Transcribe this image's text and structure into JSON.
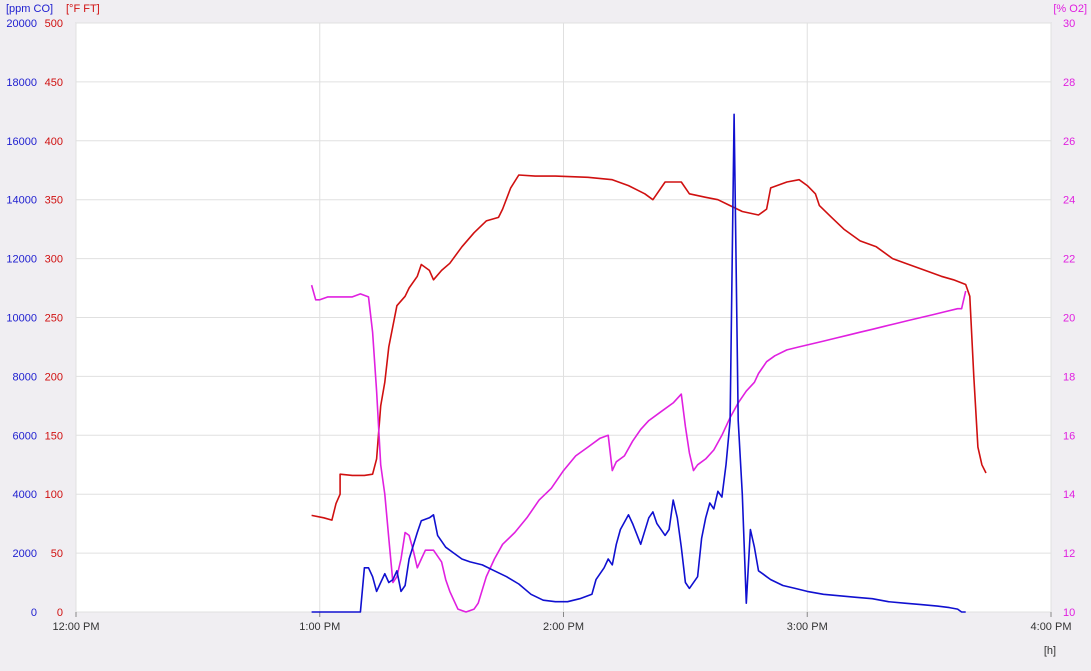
{
  "chart_data": {
    "type": "line",
    "x_axis": {
      "unit_label": "[h]",
      "range": [
        "12:00 PM",
        "4:00 PM"
      ],
      "ticks": [
        "12:00 PM",
        "1:00 PM",
        "2:00 PM",
        "3:00 PM",
        "4:00 PM"
      ]
    },
    "axes": {
      "co": {
        "label": "[ppm CO]",
        "min": 0,
        "max": 20000,
        "ticks": [
          "0",
          "2000",
          "4000",
          "6000",
          "8000",
          "10000",
          "12000",
          "14000",
          "16000",
          "18000",
          "20000"
        ],
        "color": "#2020d0"
      },
      "ft": {
        "label": "[°F FT]",
        "min": 0,
        "max": 500,
        "ticks": [
          "0",
          "50",
          "100",
          "150",
          "200",
          "250",
          "300",
          "350",
          "400",
          "450",
          "500"
        ],
        "color": "#d01010"
      },
      "o2": {
        "label": "[% O2]",
        "min": 10,
        "max": 30,
        "ticks": [
          "10",
          "12",
          "14",
          "16",
          "18",
          "20",
          "22",
          "24",
          "26",
          "28",
          "30"
        ],
        "color": "#e020e0"
      }
    },
    "grid": true,
    "series": [
      {
        "name": "[°F FT]",
        "axis": "ft",
        "color": "#d01010",
        "points": [
          [
            "12:58",
            82
          ],
          [
            "13:01",
            80
          ],
          [
            "13:03",
            78
          ],
          [
            "13:04",
            92
          ],
          [
            "13:05",
            100
          ],
          [
            "13:05",
            117
          ],
          [
            "13:08",
            116
          ],
          [
            "13:11",
            116
          ],
          [
            "13:13",
            117
          ],
          [
            "13:14",
            130
          ],
          [
            "13:15",
            175
          ],
          [
            "13:16",
            195
          ],
          [
            "13:17",
            225
          ],
          [
            "13:19",
            260
          ],
          [
            "13:21",
            268
          ],
          [
            "13:22",
            275
          ],
          [
            "13:24",
            285
          ],
          [
            "13:25",
            295
          ],
          [
            "13:27",
            290
          ],
          [
            "13:28",
            282
          ],
          [
            "13:30",
            290
          ],
          [
            "13:32",
            296
          ],
          [
            "13:35",
            310
          ],
          [
            "13:38",
            322
          ],
          [
            "13:41",
            332
          ],
          [
            "13:44",
            335
          ],
          [
            "13:45",
            342
          ],
          [
            "13:47",
            360
          ],
          [
            "13:49",
            371
          ],
          [
            "13:53",
            370
          ],
          [
            "13:58",
            370
          ],
          [
            "14:06",
            369
          ],
          [
            "14:12",
            367
          ],
          [
            "14:16",
            362
          ],
          [
            "14:20",
            355
          ],
          [
            "14:22",
            350
          ],
          [
            "14:25",
            365
          ],
          [
            "14:29",
            365
          ],
          [
            "14:31",
            355
          ],
          [
            "14:35",
            352
          ],
          [
            "14:38",
            350
          ],
          [
            "14:41",
            345
          ],
          [
            "14:44",
            340
          ],
          [
            "14:48",
            337
          ],
          [
            "14:50",
            342
          ],
          [
            "14:51",
            360
          ],
          [
            "14:55",
            365
          ],
          [
            "14:58",
            367
          ],
          [
            "15:00",
            362
          ],
          [
            "15:02",
            355
          ],
          [
            "15:03",
            345
          ],
          [
            "15:06",
            335
          ],
          [
            "15:09",
            325
          ],
          [
            "15:13",
            315
          ],
          [
            "15:17",
            310
          ],
          [
            "15:21",
            300
          ],
          [
            "15:25",
            295
          ],
          [
            "15:29",
            290
          ],
          [
            "15:33",
            285
          ],
          [
            "15:36",
            282
          ],
          [
            "15:39",
            278
          ],
          [
            "15:40",
            268
          ],
          [
            "15:41",
            200
          ],
          [
            "15:42",
            140
          ],
          [
            "15:43",
            125
          ],
          [
            "15:44",
            118
          ]
        ]
      },
      {
        "name": "[% O2]",
        "axis": "o2",
        "color": "#e020e0",
        "points": [
          [
            "12:58",
            21.1
          ],
          [
            "12:59",
            20.6
          ],
          [
            "13:00",
            20.6
          ],
          [
            "13:02",
            20.7
          ],
          [
            "13:05",
            20.7
          ],
          [
            "13:08",
            20.7
          ],
          [
            "13:10",
            20.8
          ],
          [
            "13:12",
            20.7
          ],
          [
            "13:13",
            19.5
          ],
          [
            "13:14",
            17.5
          ],
          [
            "13:15",
            15.0
          ],
          [
            "13:16",
            14.0
          ],
          [
            "13:17",
            12.5
          ],
          [
            "13:18",
            11.0
          ],
          [
            "13:19",
            11.2
          ],
          [
            "13:20",
            11.8
          ],
          [
            "13:21",
            12.7
          ],
          [
            "13:22",
            12.6
          ],
          [
            "13:23",
            12.1
          ],
          [
            "13:24",
            11.5
          ],
          [
            "13:25",
            11.8
          ],
          [
            "13:26",
            12.1
          ],
          [
            "13:28",
            12.1
          ],
          [
            "13:30",
            11.7
          ],
          [
            "13:31",
            11.1
          ],
          [
            "13:32",
            10.7
          ],
          [
            "13:33",
            10.4
          ],
          [
            "13:34",
            10.1
          ],
          [
            "13:36",
            10.0
          ],
          [
            "13:38",
            10.1
          ],
          [
            "13:39",
            10.3
          ],
          [
            "13:41",
            11.2
          ],
          [
            "13:43",
            11.8
          ],
          [
            "13:45",
            12.3
          ],
          [
            "13:48",
            12.7
          ],
          [
            "13:51",
            13.2
          ],
          [
            "13:54",
            13.8
          ],
          [
            "13:57",
            14.2
          ],
          [
            "14:00",
            14.8
          ],
          [
            "14:03",
            15.3
          ],
          [
            "14:06",
            15.6
          ],
          [
            "14:09",
            15.9
          ],
          [
            "14:11",
            16.0
          ],
          [
            "14:12",
            14.8
          ],
          [
            "14:13",
            15.1
          ],
          [
            "14:15",
            15.3
          ],
          [
            "14:17",
            15.8
          ],
          [
            "14:19",
            16.2
          ],
          [
            "14:21",
            16.5
          ],
          [
            "14:24",
            16.8
          ],
          [
            "14:27",
            17.1
          ],
          [
            "14:29",
            17.4
          ],
          [
            "14:30",
            16.3
          ],
          [
            "14:31",
            15.4
          ],
          [
            "14:32",
            14.8
          ],
          [
            "14:33",
            15.0
          ],
          [
            "14:35",
            15.2
          ],
          [
            "14:37",
            15.5
          ],
          [
            "14:39",
            16.0
          ],
          [
            "14:41",
            16.6
          ],
          [
            "14:43",
            17.1
          ],
          [
            "14:45",
            17.5
          ],
          [
            "14:47",
            17.8
          ],
          [
            "14:48",
            18.1
          ],
          [
            "14:50",
            18.5
          ],
          [
            "14:52",
            18.7
          ],
          [
            "14:55",
            18.9
          ],
          [
            "14:58",
            19.0
          ],
          [
            "15:01",
            19.1
          ],
          [
            "15:04",
            19.2
          ],
          [
            "15:07",
            19.3
          ],
          [
            "15:10",
            19.4
          ],
          [
            "15:13",
            19.5
          ],
          [
            "15:16",
            19.6
          ],
          [
            "15:19",
            19.7
          ],
          [
            "15:22",
            19.8
          ],
          [
            "15:25",
            19.9
          ],
          [
            "15:28",
            20.0
          ],
          [
            "15:31",
            20.1
          ],
          [
            "15:34",
            20.2
          ],
          [
            "15:37",
            20.3
          ],
          [
            "15:38",
            20.3
          ],
          [
            "15:39",
            20.9
          ]
        ]
      },
      {
        "name": "[ppm CO]",
        "axis": "co",
        "color": "#1010d0",
        "points": [
          [
            "12:58",
            0
          ],
          [
            "13:05",
            0
          ],
          [
            "13:10",
            0
          ],
          [
            "13:11",
            1500
          ],
          [
            "13:12",
            1500
          ],
          [
            "13:13",
            1200
          ],
          [
            "13:14",
            700
          ],
          [
            "13:15",
            1000
          ],
          [
            "13:16",
            1300
          ],
          [
            "13:17",
            1000
          ],
          [
            "13:18",
            1100
          ],
          [
            "13:19",
            1400
          ],
          [
            "13:20",
            700
          ],
          [
            "13:21",
            900
          ],
          [
            "13:22",
            1800
          ],
          [
            "13:24",
            2700
          ],
          [
            "13:25",
            3100
          ],
          [
            "13:27",
            3200
          ],
          [
            "13:28",
            3300
          ],
          [
            "13:29",
            2600
          ],
          [
            "13:31",
            2200
          ],
          [
            "13:33",
            2000
          ],
          [
            "13:35",
            1800
          ],
          [
            "13:37",
            1700
          ],
          [
            "13:40",
            1600
          ],
          [
            "13:43",
            1400
          ],
          [
            "13:46",
            1200
          ],
          [
            "13:49",
            950
          ],
          [
            "13:52",
            600
          ],
          [
            "13:55",
            400
          ],
          [
            "13:58",
            350
          ],
          [
            "14:01",
            350
          ],
          [
            "14:04",
            450
          ],
          [
            "14:07",
            600
          ],
          [
            "14:08",
            1100
          ],
          [
            "14:10",
            1500
          ],
          [
            "14:11",
            1800
          ],
          [
            "14:12",
            1600
          ],
          [
            "14:13",
            2300
          ],
          [
            "14:14",
            2800
          ],
          [
            "14:16",
            3300
          ],
          [
            "14:17",
            3000
          ],
          [
            "14:19",
            2300
          ],
          [
            "14:21",
            3200
          ],
          [
            "14:22",
            3400
          ],
          [
            "14:23",
            3000
          ],
          [
            "14:25",
            2600
          ],
          [
            "14:26",
            2800
          ],
          [
            "14:27",
            3800
          ],
          [
            "14:28",
            3200
          ],
          [
            "14:29",
            2200
          ],
          [
            "14:30",
            1000
          ],
          [
            "14:31",
            800
          ],
          [
            "14:33",
            1200
          ],
          [
            "14:34",
            2500
          ],
          [
            "14:35",
            3200
          ],
          [
            "14:36",
            3700
          ],
          [
            "14:37",
            3500
          ],
          [
            "14:38",
            4100
          ],
          [
            "14:39",
            3900
          ],
          [
            "14:40",
            5000
          ],
          [
            "14:41",
            6500
          ],
          [
            "14:42",
            16900
          ],
          [
            "14:43",
            6500
          ],
          [
            "14:44",
            4000
          ],
          [
            "14:45",
            300
          ],
          [
            "14:46",
            2800
          ],
          [
            "14:47",
            2200
          ],
          [
            "14:48",
            1400
          ],
          [
            "14:49",
            1300
          ],
          [
            "14:50",
            1200
          ],
          [
            "14:51",
            1100
          ],
          [
            "14:54",
            900
          ],
          [
            "14:57",
            800
          ],
          [
            "15:00",
            700
          ],
          [
            "15:04",
            600
          ],
          [
            "15:08",
            550
          ],
          [
            "15:12",
            500
          ],
          [
            "15:16",
            450
          ],
          [
            "15:20",
            350
          ],
          [
            "15:24",
            300
          ],
          [
            "15:28",
            250
          ],
          [
            "15:32",
            200
          ],
          [
            "15:35",
            150
          ],
          [
            "15:37",
            100
          ],
          [
            "15:38",
            0
          ],
          [
            "15:39",
            0
          ]
        ]
      }
    ]
  }
}
